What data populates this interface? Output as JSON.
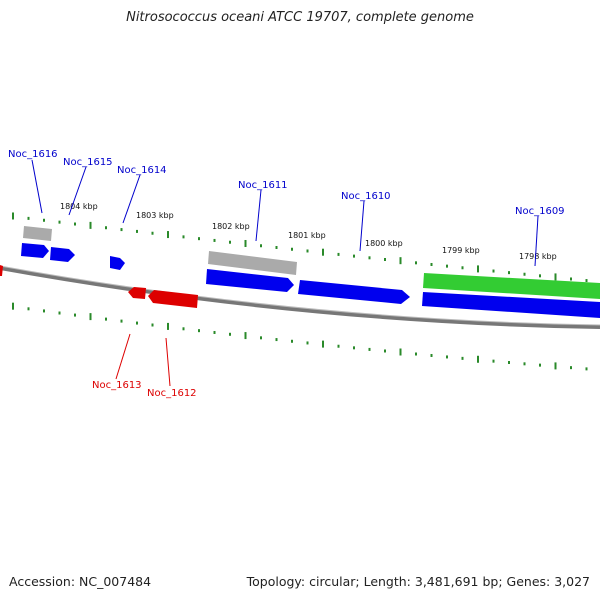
{
  "header": {
    "title": "Nitrosococcus oceani ATCC 19707, complete genome"
  },
  "footer": {
    "accession": "Accession: NC_007484",
    "summary": "Topology: circular; Length: 3,481,691 bp; Genes: 3,027"
  },
  "colors": {
    "forward_gene": "#0000ee",
    "reverse_gene": "#dd0000",
    "highlight_gene": "#33cc33",
    "pseudo_gene": "#aaaaaa",
    "backbone": "#888888",
    "tick": "#2a8a2a",
    "forward_label": "#0000cc",
    "reverse_label": "#dd0000"
  },
  "scale_labels": [
    "1804 kbp",
    "1803 kbp",
    "1802 kbp",
    "1801 kbp",
    "1800 kbp",
    "1799 kbp",
    "1798 kbp"
  ],
  "forward_gene_labels": [
    "Noc_1616",
    "Noc_1615",
    "Noc_1614",
    "Noc_1611",
    "Noc_1610",
    "Noc_1609"
  ],
  "reverse_gene_labels": [
    "Noc_1613",
    "Noc_1612"
  ]
}
